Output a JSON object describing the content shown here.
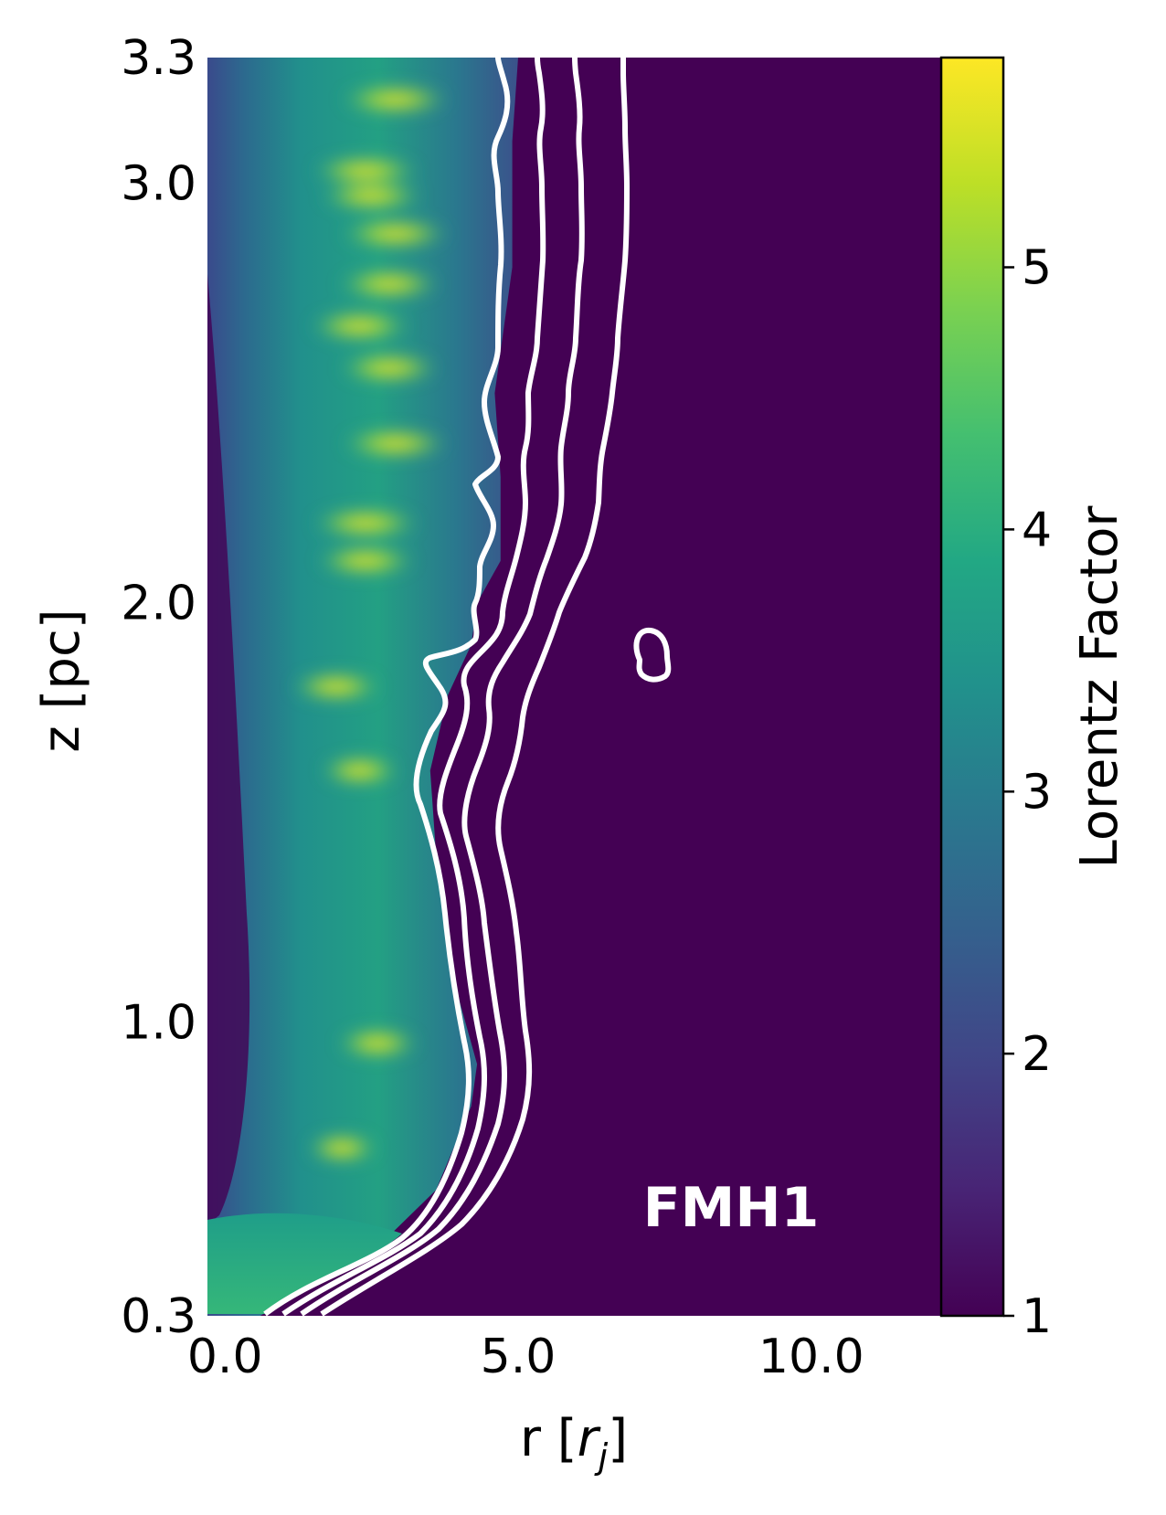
{
  "chart_data": {
    "type": "heatmap",
    "xlabel": "r [",
    "xlabel_var": "r",
    "xlabel_sub": "j",
    "xlabel_end": "]",
    "ylabel": "z [pc]",
    "x_ticks": [
      "0.0",
      "5.0",
      "10.0"
    ],
    "x_tick_values": [
      0,
      5,
      10
    ],
    "y_ticks": [
      "0.3",
      "1.0",
      "2.0",
      "3.0",
      "3.3"
    ],
    "y_tick_values": [
      0.3,
      1.0,
      2.0,
      3.0,
      3.3
    ],
    "xlim": [
      -0.3,
      12.2
    ],
    "ylim": [
      0.3,
      3.3
    ],
    "colorbar": {
      "label": "Lorentz Factor",
      "ticks": [
        "1",
        "2",
        "3",
        "4",
        "5"
      ],
      "tick_values": [
        1,
        2,
        3,
        4,
        5
      ],
      "range": [
        1,
        5.8
      ],
      "colormap": "viridis"
    },
    "annotation": "FMH1",
    "contour_color": "#ffffff",
    "background_value": 1,
    "jet_edge_r": [
      [
        0.3,
        0.6
      ],
      [
        0.45,
        2.5
      ],
      [
        0.6,
        3.6
      ],
      [
        0.8,
        4.2
      ],
      [
        0.9,
        4.3
      ],
      [
        1.1,
        3.9
      ],
      [
        1.4,
        3.6
      ],
      [
        1.6,
        3.5
      ],
      [
        1.78,
        3.8
      ],
      [
        1.9,
        4.2
      ],
      [
        2.0,
        4.3
      ],
      [
        2.1,
        4.7
      ],
      [
        2.3,
        4.7
      ],
      [
        2.5,
        4.6
      ],
      [
        2.8,
        4.9
      ],
      [
        3.1,
        4.9
      ],
      [
        3.3,
        5.0
      ]
    ],
    "knots": [
      {
        "r": 2.9,
        "z": 3.2,
        "gamma": 5.7
      },
      {
        "r": 2.4,
        "z": 3.03,
        "gamma": 5.6
      },
      {
        "r": 2.5,
        "z": 2.97,
        "gamma": 5.4
      },
      {
        "r": 2.9,
        "z": 2.88,
        "gamma": 5.7
      },
      {
        "r": 2.8,
        "z": 2.76,
        "gamma": 5.4
      },
      {
        "r": 2.3,
        "z": 2.66,
        "gamma": 5.3
      },
      {
        "r": 2.8,
        "z": 2.56,
        "gamma": 5.3
      },
      {
        "r": 2.9,
        "z": 2.38,
        "gamma": 5.6
      },
      {
        "r": 2.4,
        "z": 2.19,
        "gamma": 5.6
      },
      {
        "r": 2.4,
        "z": 2.1,
        "gamma": 5.2
      },
      {
        "r": 1.9,
        "z": 1.8,
        "gamma": 4.8
      },
      {
        "r": 2.3,
        "z": 1.6,
        "gamma": 4.3
      },
      {
        "r": 2.6,
        "z": 0.95,
        "gamma": 4.4
      },
      {
        "r": 2.0,
        "z": 0.7,
        "gamma": 3.9
      }
    ]
  }
}
